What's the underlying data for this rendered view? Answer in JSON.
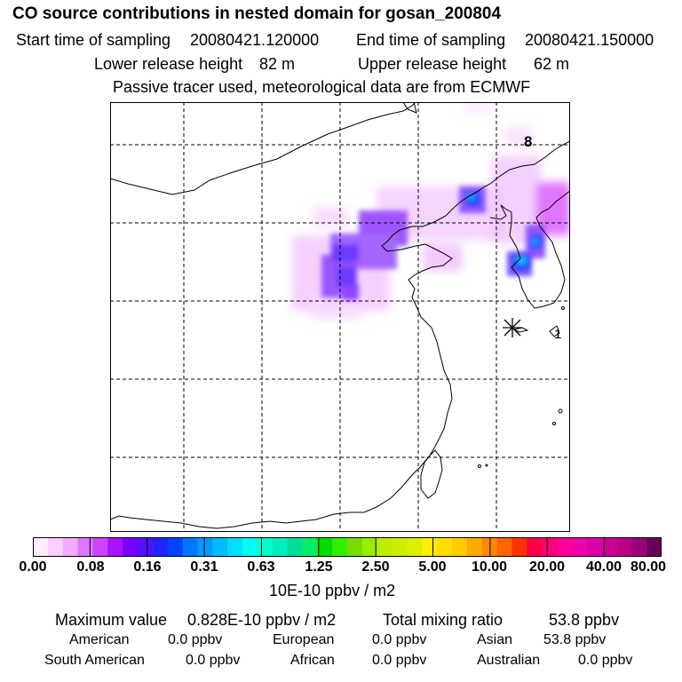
{
  "header": {
    "title": "CO  source contributions in nested domain for gosan_200804",
    "start_label": "Start time of sampling",
    "start_value": "20080421.120000",
    "end_label": "End time of sampling",
    "end_value": "20080421.150000",
    "lower_label": "Lower release height",
    "lower_value": "82 m",
    "upper_label": "Upper release height",
    "upper_value": "62 m",
    "tracer_note": "Passive tracer used, meteorological data are from ECMWF"
  },
  "map": {
    "marker_labels": [
      "8",
      "1"
    ],
    "receptor_symbol": "✳"
  },
  "colorbar": {
    "unit": "10E-10 ppbv / m2",
    "tick_labels": [
      "0.00",
      "0.08",
      "0.16",
      "0.31",
      "0.63",
      "1.25",
      "2.50",
      "5.00",
      "10.00",
      "20.00",
      "40.00",
      "80.00"
    ],
    "colors": [
      "#ffeeff",
      "#ffccff",
      "#f5aaff",
      "#dd77ff",
      "#cc44ff",
      "#aa11ff",
      "#7700ff",
      "#5511ff",
      "#2222ff",
      "#0044ff",
      "#0077ff",
      "#0099ff",
      "#00bbff",
      "#00ddff",
      "#00ffee",
      "#00ffcc",
      "#00eebb",
      "#00dd99",
      "#00ee66",
      "#00dd00",
      "#33ee00",
      "#77dd00",
      "#99ee00",
      "#bbee00",
      "#ccee00",
      "#ddee00",
      "#ffee00",
      "#ffdd00",
      "#ffcc00",
      "#ffaa00",
      "#ff8800",
      "#ff6600",
      "#ff3300",
      "#ff0044",
      "#ff0077",
      "#ff0099",
      "#ee00aa",
      "#dd00aa",
      "#cc0099",
      "#bb0088",
      "#990077",
      "#660055"
    ]
  },
  "summary": {
    "max_label": "Maximum value",
    "max_value": "0.828E-10 ppbv / m2",
    "total_label": "Total mixing ratio",
    "total_value": "53.8 ppbv",
    "regions": [
      {
        "name": "American",
        "value": "0.0 ppbv"
      },
      {
        "name": "European",
        "value": "0.0 ppbv"
      },
      {
        "name": "Asian",
        "value": "53.8 ppbv"
      },
      {
        "name": "South American",
        "value": "0.0 ppbv"
      },
      {
        "name": "African",
        "value": "0.0 ppbv"
      },
      {
        "name": "Australian",
        "value": "0.0 ppbv"
      }
    ]
  }
}
